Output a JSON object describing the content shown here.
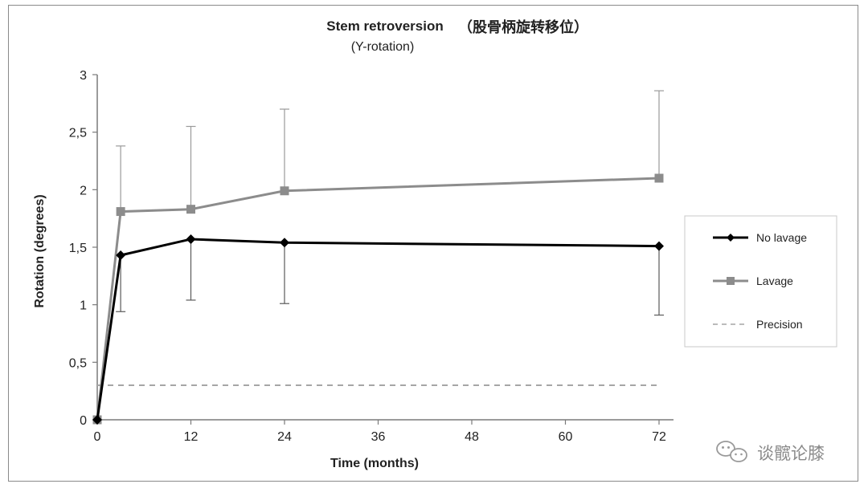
{
  "chart_data": {
    "type": "line",
    "title": "Stem retroversion",
    "title_cn": "（股骨柄旋转移位）",
    "subtitle": "(Y-rotation)",
    "xlabel": "Time  (months)",
    "ylabel": "Rotation (degrees)",
    "xlim": [
      0,
      72
    ],
    "ylim": [
      0,
      3
    ],
    "x_ticks": [
      0,
      12,
      24,
      36,
      48,
      60,
      72
    ],
    "y_ticks": [
      0,
      0.5,
      1,
      1.5,
      2,
      2.5,
      3
    ],
    "y_tick_labels": [
      "0",
      "0,5",
      "1",
      "1,5",
      "2",
      "2,5",
      "3"
    ],
    "x_tick_labels": [
      "0",
      "12",
      "24",
      "36",
      "48",
      "60",
      "72"
    ],
    "grid": false,
    "legend_position": "right",
    "series": [
      {
        "name": "Lavage",
        "color": "#8c8c8c",
        "marker": "square",
        "x": [
          0,
          3,
          12,
          24,
          72
        ],
        "y": [
          0,
          1.81,
          1.83,
          1.99,
          2.1
        ],
        "error_upper": [
          null,
          2.38,
          2.55,
          2.7,
          2.86
        ]
      },
      {
        "name": "No lavage",
        "color": "#000000",
        "marker": "diamond",
        "x": [
          0,
          3,
          12,
          24,
          72
        ],
        "y": [
          0,
          1.43,
          1.57,
          1.54,
          1.51
        ],
        "error_lower": [
          null,
          0.94,
          1.04,
          1.01,
          0.91
        ]
      },
      {
        "name": "Precision",
        "color": "#a6a6a6",
        "style": "dashed",
        "x": [
          0,
          72
        ],
        "y": [
          0.3,
          0.3
        ]
      }
    ],
    "legend": [
      {
        "label": "No lavage",
        "color": "#000000",
        "marker": "diamond",
        "style": "solid"
      },
      {
        "label": "Lavage",
        "color": "#8c8c8c",
        "marker": "square",
        "style": "solid"
      },
      {
        "label": "Precision",
        "color": "#a6a6a6",
        "marker": "none",
        "style": "dashed"
      }
    ]
  },
  "watermark": {
    "text": "谈髋论膝",
    "icon": "wechat-icon"
  }
}
